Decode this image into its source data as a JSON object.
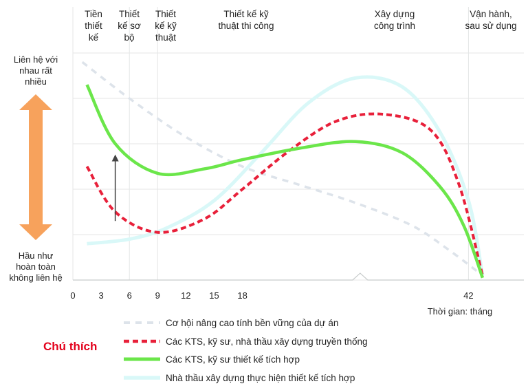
{
  "chart_data": {
    "type": "line",
    "phases": [
      {
        "lines": [
          "Tiền",
          "thiết",
          "kế"
        ],
        "x_start": 0,
        "x_end": 6
      },
      {
        "lines": [
          "Thiết",
          "kế sơ",
          "bộ"
        ],
        "x_start": 6,
        "x_end": 9
      },
      {
        "lines": [
          "Thiết",
          "kế kỹ",
          "thuật"
        ],
        "x_start": 9,
        "x_end": 12
      },
      {
        "lines": [
          "Thiết kế kỹ",
          "thuật thi công"
        ],
        "x_start": 12,
        "x_end": 30
      },
      {
        "lines": [
          "Xây dựng",
          "công trình"
        ],
        "x_start": 30,
        "x_end": 42
      },
      {
        "lines": [
          "Vận hành,",
          "sau sử dụng"
        ],
        "x_start": 42,
        "x_end": 46
      }
    ],
    "y_axis": {
      "top_label": [
        "Liên hệ với",
        "nhau rất",
        "nhiều"
      ],
      "bottom_label": [
        "Hầu như",
        "hoàn toàn",
        "không liên hệ"
      ],
      "ylim": [
        0,
        10
      ]
    },
    "x_axis": {
      "ticks": [
        0,
        3,
        6,
        9,
        12,
        15,
        18,
        42
      ],
      "xlabel": "Thời gian: tháng",
      "xlim": [
        0,
        46
      ]
    },
    "series": [
      {
        "name": "Cơ hội nâng cao tính bền vững của dự án",
        "style": "dashed",
        "color": "#dde3ea",
        "points": [
          [
            1,
            9.6
          ],
          [
            6,
            8.0
          ],
          [
            12,
            6.3
          ],
          [
            18,
            5.0
          ],
          [
            24,
            4.2
          ],
          [
            30,
            3.4
          ],
          [
            36,
            2.4
          ],
          [
            40,
            1.3
          ],
          [
            43.5,
            0.2
          ]
        ]
      },
      {
        "name": "Các KTS, kỹ sư, nhà thầu xây dựng truyền thống",
        "style": "dashed",
        "color": "#e8203a",
        "points": [
          [
            1.5,
            5.0
          ],
          [
            4.5,
            3.0
          ],
          [
            9,
            2.1
          ],
          [
            14,
            2.7
          ],
          [
            18,
            4.0
          ],
          [
            23,
            5.7
          ],
          [
            28,
            7.0
          ],
          [
            33,
            7.3
          ],
          [
            38,
            6.6
          ],
          [
            41,
            4.2
          ],
          [
            43.5,
            0.2
          ]
        ]
      },
      {
        "name": "Các KTS, kỹ sư thiết kế tích hợp",
        "style": "solid",
        "color": "#6be64a",
        "points": [
          [
            1.5,
            8.6
          ],
          [
            4.5,
            6.0
          ],
          [
            9,
            4.7
          ],
          [
            14,
            4.9
          ],
          [
            18,
            5.3
          ],
          [
            24,
            5.8
          ],
          [
            30,
            6.1
          ],
          [
            35,
            5.6
          ],
          [
            39,
            4.1
          ],
          [
            41.5,
            2.4
          ],
          [
            43.5,
            0.1
          ]
        ]
      },
      {
        "name": "Nhà thầu xây dựng thực hiện thiết kế tích hợp",
        "style": "solid",
        "color": "#d9f8f8",
        "points": [
          [
            1.5,
            1.6
          ],
          [
            6,
            1.8
          ],
          [
            10,
            2.3
          ],
          [
            15,
            3.5
          ],
          [
            20,
            5.6
          ],
          [
            25,
            7.8
          ],
          [
            30,
            8.9
          ],
          [
            35,
            8.5
          ],
          [
            39,
            6.5
          ],
          [
            42,
            3.5
          ],
          [
            43.5,
            0.2
          ]
        ]
      }
    ],
    "annotation": {
      "arrow_from": [
        4.5,
        2.6
      ],
      "arrow_to": [
        4.5,
        5.5
      ]
    },
    "legend": {
      "title": "Chú thích",
      "title_color": "#e3001b",
      "position": "bottom"
    },
    "grid": true,
    "colors": {
      "double_arrow": "#f7a25c",
      "grid": "#e4e6e6",
      "axis": "#c8cccc"
    }
  }
}
